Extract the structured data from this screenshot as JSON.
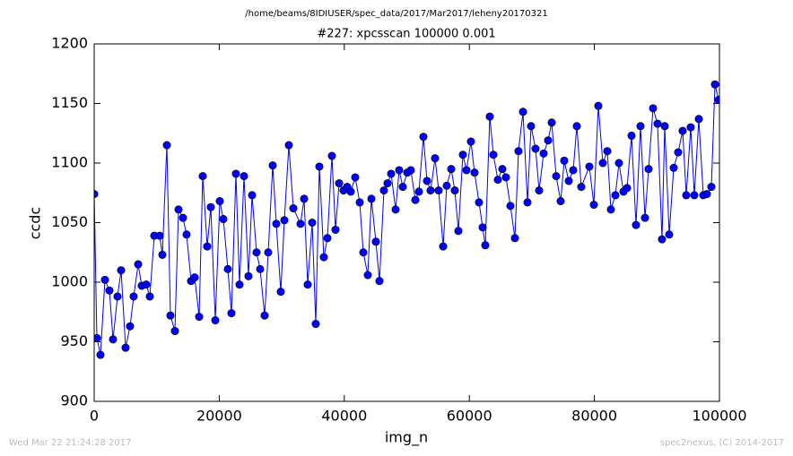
{
  "chart_data": {
    "type": "line",
    "title": "/home/beams/8IDIUSER/spec_data/2017/Mar2017/leheny20170321",
    "subtitle": "#227: xpcsscan 100000 0.001",
    "xlabel": "img_n",
    "ylabel": "ccdc",
    "footer_left": "Wed Mar 22 21:24:28 2017",
    "footer_right": "spec2nexus, (C) 2014-2017",
    "xlim": [
      0,
      100000
    ],
    "xticks": [
      0,
      20000,
      40000,
      60000,
      80000,
      100000
    ],
    "ylim": [
      900,
      1200
    ],
    "yticks": [
      900,
      950,
      1000,
      1050,
      1100,
      1150,
      1200
    ],
    "grid": false,
    "x": [
      0,
      430,
      1004,
      1722,
      2439,
      3013,
      3730,
      4304,
      5022,
      5739,
      6313,
      7030,
      7604,
      8321,
      8895,
      9613,
      10473,
      10904,
      11621,
      12195,
      12912,
      13486,
      14204,
      14778,
      15495,
      16069,
      16786,
      17360,
      18077,
      18651,
      19369,
      20086,
      20660,
      21377,
      21951,
      22669,
      23243,
      23960,
      24677,
      25251,
      25968,
      26542,
      27260,
      27834,
      28551,
      29125,
      29842,
      30416,
      31133,
      31851,
      32999,
      33572,
      34146,
      34864,
      35438,
      36011,
      36729,
      37303,
      38020,
      38594,
      39168,
      39885,
      40459,
      41033,
      41750,
      42468,
      43042,
      43759,
      44333,
      45050,
      45624,
      46341,
      46915,
      47489,
      48207,
      48780,
      49354,
      50072,
      50646,
      51363,
      51937,
      52654,
      53228,
      53802,
      54519,
      55093,
      55811,
      56385,
      57102,
      57676,
      58250,
      58967,
      59541,
      60258,
      60832,
      61549,
      62123,
      62554,
      63271,
      63845,
      64562,
      65280,
      65854,
      66571,
      67288,
      67862,
      68580,
      69297,
      69871,
      70588,
      71162,
      71880,
      72597,
      73171,
      73888,
      74605,
      75179,
      75897,
      76614,
      77188,
      77905,
      79197,
      79914,
      80631,
      81349,
      82066,
      82640,
      83357,
      83931,
      84648,
      85222,
      85940,
      86657,
      87374,
      88092,
      88666,
      89383,
      90100,
      90818,
      91248,
      91966,
      92683,
      93400,
      94118,
      94692,
      95409,
      95983,
      96700,
      97418,
      97991,
      98709,
      99283,
      99857
    ],
    "series": [
      {
        "name": "ccdc",
        "color": "#0000ff",
        "values": [
          1074,
          953,
          939,
          1002,
          993,
          952,
          988,
          1010,
          945,
          963,
          988,
          1015,
          997,
          998,
          988,
          1039,
          1039,
          1023,
          1115,
          972,
          959,
          1061,
          1054,
          1040,
          1001,
          1004,
          971,
          1089,
          1030,
          1063,
          968,
          1068,
          1053,
          1011,
          974,
          1091,
          998,
          1089,
          1005,
          1073,
          1025,
          1011,
          972,
          1025,
          1098,
          1049,
          992,
          1052,
          1115,
          1062,
          1049,
          1070,
          998,
          1050,
          965,
          1097,
          1021,
          1037,
          1106,
          1044,
          1083,
          1077,
          1080,
          1076,
          1088,
          1067,
          1025,
          1006,
          1070,
          1034,
          1001,
          1077,
          1083,
          1091,
          1061,
          1094,
          1080,
          1092,
          1094,
          1069,
          1076,
          1122,
          1085,
          1077,
          1104,
          1077,
          1030,
          1081,
          1095,
          1077,
          1043,
          1107,
          1094,
          1118,
          1092,
          1067,
          1046,
          1031,
          1139,
          1107,
          1086,
          1095,
          1088,
          1064,
          1037,
          1110,
          1143,
          1067,
          1131,
          1112,
          1077,
          1108,
          1119,
          1134,
          1089,
          1068,
          1102,
          1085,
          1094,
          1131,
          1080,
          1097,
          1065,
          1148,
          1100,
          1110,
          1061,
          1073,
          1100,
          1076,
          1079,
          1123,
          1048,
          1131,
          1054,
          1095,
          1146,
          1133,
          1036,
          1131,
          1040,
          1096,
          1109,
          1127,
          1073,
          1130,
          1073,
          1137,
          1073,
          1074,
          1080,
          1166,
          1153
        ]
      }
    ]
  }
}
